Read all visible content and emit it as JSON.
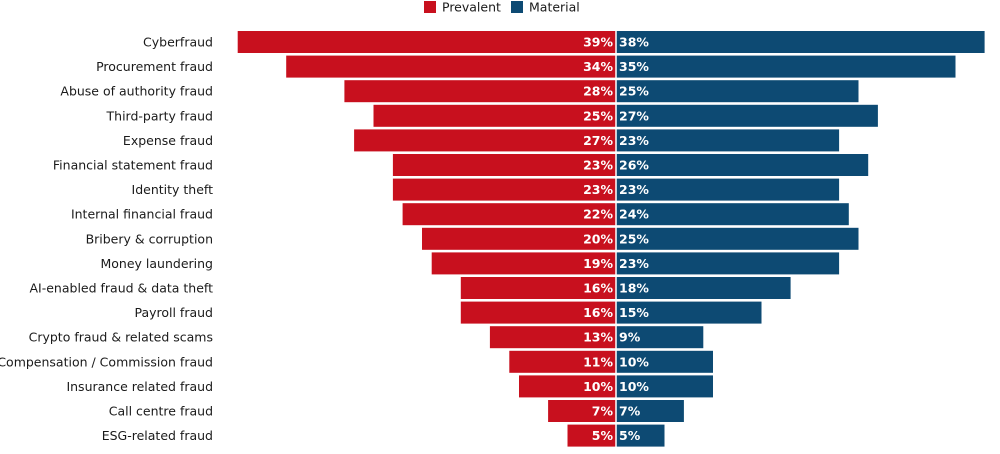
{
  "chart_data": {
    "type": "bar",
    "orientation": "horizontal-diverging",
    "title": "",
    "xlabel": "",
    "ylabel": "",
    "xlim": [
      0,
      40
    ],
    "grid": false,
    "legend_position": "top-center",
    "categories": [
      "Cyberfraud",
      "Procurement fraud",
      "Abuse of authority fraud",
      "Third-party fraud",
      "Expense fraud",
      "Financial statement fraud",
      "Identity theft",
      "Internal financial fraud",
      "Bribery & corruption",
      "Money laundering",
      "AI-enabled fraud & data theft",
      "Payroll fraud",
      "Crypto fraud & related scams",
      "Compensation / Commission fraud",
      "Insurance related fraud",
      "Call centre fraud",
      "ESG-related fraud"
    ],
    "series": [
      {
        "name": "Prevalent",
        "color": "#c8101e",
        "values": [
          39,
          34,
          28,
          25,
          27,
          23,
          23,
          22,
          20,
          19,
          16,
          16,
          13,
          11,
          10,
          7,
          5
        ],
        "labels": [
          "39%",
          "34%",
          "28%",
          "25%",
          "27%",
          "23%",
          "23%",
          "22%",
          "20%",
          "19%",
          "16%",
          "16%",
          "13%",
          "11%",
          "10%",
          "7%",
          "5%"
        ]
      },
      {
        "name": "Material",
        "color": "#0d4a73",
        "values": [
          38,
          35,
          25,
          27,
          23,
          26,
          23,
          24,
          25,
          23,
          18,
          15,
          9,
          10,
          10,
          7,
          5
        ],
        "labels": [
          "38%",
          "35%",
          "25%",
          "27%",
          "23%",
          "26%",
          "23%",
          "24%",
          "25%",
          "23%",
          "18%",
          "15%",
          "9%",
          "10%",
          "10%",
          "7%",
          "5%"
        ]
      }
    ]
  }
}
